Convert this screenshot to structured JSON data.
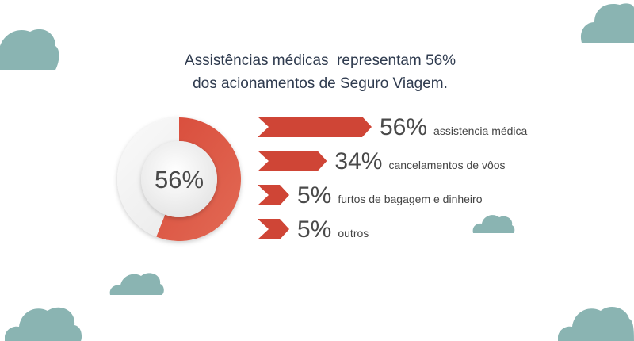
{
  "title": {
    "line1": "Assistências médicas  representam 56%",
    "line2": "dos acionamentos de Seguro Viagem."
  },
  "colors": {
    "accent": "#d84b3a",
    "bar": "#cf4536",
    "ring_bg": "#f0f0f0",
    "cloud": "#8ab4b2",
    "title_text": "#2f3b4f"
  },
  "donut": {
    "center_label": "56%",
    "value_percent": 56
  },
  "chart_data": {
    "type": "bar",
    "orientation": "horizontal",
    "unit": "%",
    "categories": [
      "assistencia médica",
      "cancelamentos de vôos",
      "furtos de bagagem e dinheiro",
      "outros"
    ],
    "values": [
      56,
      34,
      5,
      5
    ],
    "labels": [
      "56%",
      "34%",
      "5%",
      "5%"
    ],
    "title": "Assistências médicas  representam 56% dos acionamentos de Seguro Viagem."
  }
}
